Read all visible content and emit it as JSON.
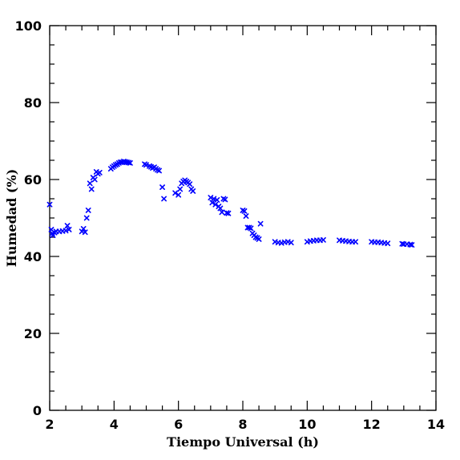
{
  "chart_data": {
    "type": "scatter",
    "title": "",
    "xlabel": "Tiempo Universal (h)",
    "ylabel": "Humedad (%)",
    "xlim": [
      2,
      14
    ],
    "ylim": [
      0,
      100
    ],
    "x_ticks_major": [
      2,
      4,
      6,
      8,
      10,
      12,
      14
    ],
    "y_ticks_major": [
      0,
      20,
      40,
      60,
      80,
      100
    ],
    "x_minor_step": 0.5,
    "y_minor_step": 5,
    "marker": "x",
    "color": "#0000ff",
    "grid": false,
    "legend": "none",
    "series": [
      {
        "points": [
          [
            2.0,
            53.5
          ],
          [
            2.05,
            47.0
          ],
          [
            2.08,
            46.0
          ],
          [
            2.1,
            45.5
          ],
          [
            2.15,
            46.2
          ],
          [
            2.2,
            46.5
          ],
          [
            2.3,
            46.5
          ],
          [
            2.4,
            46.6
          ],
          [
            2.5,
            46.7
          ],
          [
            2.55,
            48.0
          ],
          [
            2.6,
            47.0
          ],
          [
            3.0,
            46.5
          ],
          [
            3.05,
            47.2
          ],
          [
            3.1,
            46.3
          ],
          [
            3.15,
            50.0
          ],
          [
            3.2,
            52.0
          ],
          [
            3.25,
            59.0
          ],
          [
            3.3,
            57.5
          ],
          [
            3.35,
            60.5
          ],
          [
            3.4,
            60.0
          ],
          [
            3.45,
            62.0
          ],
          [
            3.5,
            61.5
          ],
          [
            3.55,
            61.8
          ],
          [
            3.9,
            62.8
          ],
          [
            3.95,
            63.2
          ],
          [
            4.0,
            63.5
          ],
          [
            4.05,
            63.8
          ],
          [
            4.1,
            64.0
          ],
          [
            4.15,
            64.3
          ],
          [
            4.2,
            64.5
          ],
          [
            4.25,
            64.5
          ],
          [
            4.3,
            64.7
          ],
          [
            4.35,
            64.6
          ],
          [
            4.4,
            64.5
          ],
          [
            4.45,
            64.4
          ],
          [
            4.5,
            64.3
          ],
          [
            4.95,
            64.0
          ],
          [
            5.0,
            63.8
          ],
          [
            5.1,
            63.5
          ],
          [
            5.15,
            63.3
          ],
          [
            5.2,
            63.0
          ],
          [
            5.25,
            63.2
          ],
          [
            5.3,
            62.8
          ],
          [
            5.35,
            62.5
          ],
          [
            5.4,
            62.3
          ],
          [
            5.5,
            58.0
          ],
          [
            5.55,
            55.0
          ],
          [
            5.9,
            56.5
          ],
          [
            6.0,
            56.0
          ],
          [
            6.05,
            57.5
          ],
          [
            6.1,
            59.0
          ],
          [
            6.15,
            59.5
          ],
          [
            6.2,
            59.8
          ],
          [
            6.25,
            59.5
          ],
          [
            6.3,
            59.2
          ],
          [
            6.35,
            58.8
          ],
          [
            6.4,
            57.5
          ],
          [
            6.45,
            57.0
          ],
          [
            7.0,
            55.3
          ],
          [
            7.05,
            54.0
          ],
          [
            7.1,
            55.0
          ],
          [
            7.15,
            53.5
          ],
          [
            7.2,
            54.7
          ],
          [
            7.25,
            53.0
          ],
          [
            7.3,
            52.5
          ],
          [
            7.35,
            51.5
          ],
          [
            7.4,
            55.0
          ],
          [
            7.45,
            54.8
          ],
          [
            7.5,
            51.3
          ],
          [
            7.55,
            51.2
          ],
          [
            8.0,
            52.0
          ],
          [
            8.05,
            51.8
          ],
          [
            8.1,
            50.5
          ],
          [
            8.15,
            47.5
          ],
          [
            8.2,
            47.5
          ],
          [
            8.25,
            47.3
          ],
          [
            8.3,
            46.0
          ],
          [
            8.35,
            45.5
          ],
          [
            8.4,
            45.0
          ],
          [
            8.45,
            44.8
          ],
          [
            8.5,
            44.5
          ],
          [
            8.55,
            48.5
          ],
          [
            9.0,
            43.8
          ],
          [
            9.1,
            43.6
          ],
          [
            9.2,
            43.5
          ],
          [
            9.3,
            43.7
          ],
          [
            9.4,
            43.8
          ],
          [
            9.5,
            43.6
          ],
          [
            10.0,
            43.8
          ],
          [
            10.1,
            44.0
          ],
          [
            10.2,
            44.1
          ],
          [
            10.3,
            44.2
          ],
          [
            10.4,
            44.2
          ],
          [
            10.5,
            44.3
          ],
          [
            11.0,
            44.2
          ],
          [
            11.1,
            44.1
          ],
          [
            11.2,
            44.0
          ],
          [
            11.3,
            43.9
          ],
          [
            11.4,
            43.8
          ],
          [
            11.5,
            43.8
          ],
          [
            12.0,
            43.8
          ],
          [
            12.1,
            43.7
          ],
          [
            12.2,
            43.7
          ],
          [
            12.3,
            43.6
          ],
          [
            12.4,
            43.5
          ],
          [
            12.5,
            43.4
          ],
          [
            12.95,
            43.3
          ],
          [
            13.0,
            43.2
          ],
          [
            13.1,
            43.2
          ],
          [
            13.2,
            43.1
          ],
          [
            13.25,
            43.0
          ]
        ]
      }
    ]
  }
}
